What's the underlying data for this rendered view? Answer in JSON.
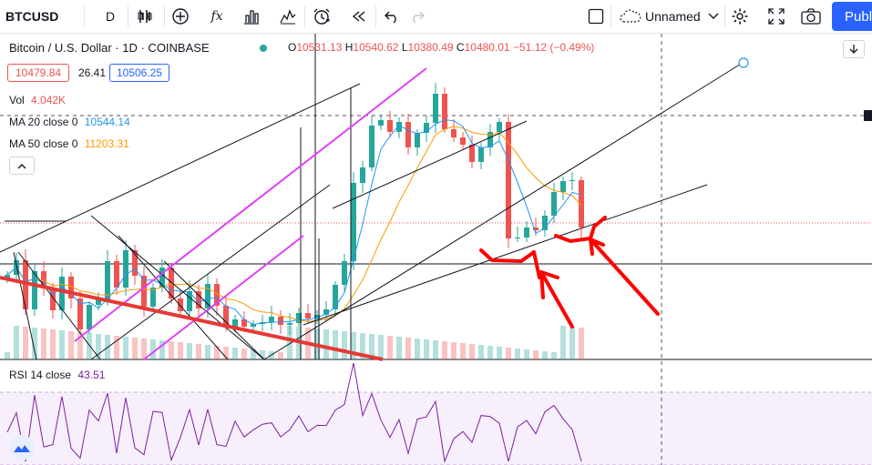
{
  "toolbar": {
    "symbol": "BTCUSD",
    "interval": "D",
    "layout_name": "Unnamed",
    "publish_label": "Publi"
  },
  "header": {
    "title": "Bitcoin / U.S. Dollar · 1D · COINBASE",
    "ohlc": {
      "o_label": "O",
      "o": "10531.13",
      "h_label": "H",
      "h": "10540.62",
      "l_label": "L",
      "l": "10380.49",
      "c_label": "C",
      "c": "10480.01",
      "change": "−51.12 (−0.49%)"
    },
    "bid": "10479.84",
    "spread": "26.41",
    "ask": "10506.25"
  },
  "indicators": {
    "vol_label": "Vol",
    "vol_value": "4.042K",
    "ma20_label": "MA 20 close 0",
    "ma20_value": "10544.14",
    "ma50_label": "MA 50 close 0",
    "ma50_value": "11203.31",
    "rsi_label": "RSI 14 close",
    "rsi_value": "43.51"
  },
  "colors": {
    "up": "#26a69a",
    "down": "#ef5350",
    "ma20": "#2196f3",
    "ma50": "#ff9800",
    "rsi": "#7b1fa2",
    "accent": "#2962ff",
    "annotation": "#ff0000",
    "magenta": "#e040fb"
  },
  "icons": [
    "bar-style-icon",
    "add-indicator-icon",
    "fx-icon",
    "compare-icon",
    "templates-icon",
    "alert-icon",
    "replay-icon",
    "undo-icon",
    "redo-icon",
    "fullscreen-checkbox-icon",
    "cloud-icon",
    "settings-icon",
    "fullscreen-icon",
    "camera-icon"
  ],
  "chart_data": {
    "type": "candlestick",
    "symbol": "BTCUSD",
    "timeframe": "1D",
    "exchange": "COINBASE",
    "last_close": 10480.01,
    "open": 10531.13,
    "high": 10540.62,
    "low": 10380.49,
    "change": -51.12,
    "change_pct": -0.49,
    "ma20": 10544.14,
    "ma50": 11203.31,
    "volume_last": "4.042K",
    "rsi14": 43.51,
    "annotations": [
      "hand-drawn red arrows pointing to support touches",
      "trendlines and parallel channels"
    ]
  }
}
